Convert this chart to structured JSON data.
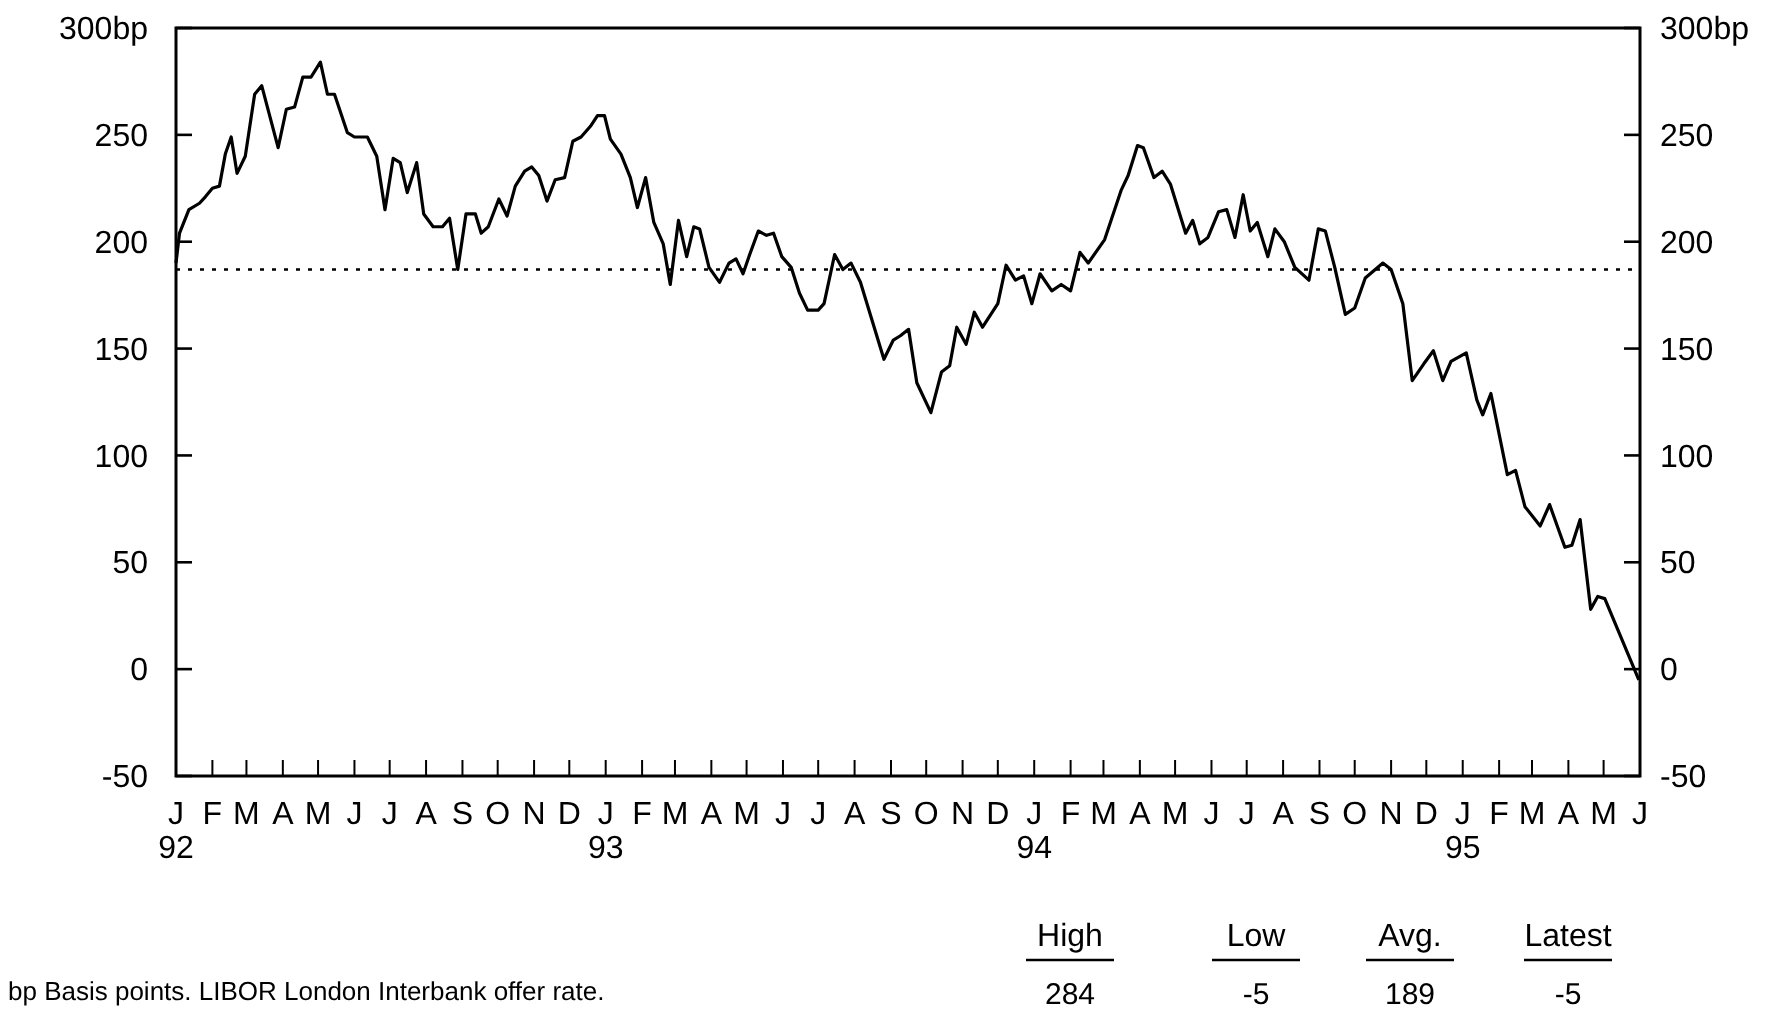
{
  "chart_data": {
    "type": "line",
    "series": [
      {
        "color": "#000000",
        "x": [
          "1992-01-01",
          "1992-01-04",
          "1992-01-12",
          "1992-01-21",
          "1992-01-26",
          "1992-02-01",
          "1992-02-07",
          "1992-02-12",
          "1992-02-17",
          "1992-02-22",
          "1992-02-29",
          "1992-03-08",
          "1992-03-14",
          "1992-03-28",
          "1992-04-04",
          "1992-04-11",
          "1992-04-18",
          "1992-04-25",
          "1992-05-03",
          "1992-05-09",
          "1992-05-15",
          "1992-05-26",
          "1992-06-01",
          "1992-06-12",
          "1992-06-20",
          "1992-06-27",
          "1992-07-04",
          "1992-07-10",
          "1992-07-16",
          "1992-07-24",
          "1992-07-30",
          "1992-08-07",
          "1992-08-15",
          "1992-08-21",
          "1992-08-28",
          "1992-09-04",
          "1992-09-12",
          "1992-09-17",
          "1992-09-23",
          "1992-10-02",
          "1992-10-09",
          "1992-10-16",
          "1992-10-24",
          "1992-10-30",
          "1992-11-05",
          "1992-11-12",
          "1992-11-19",
          "1992-11-27",
          "1992-12-04",
          "1992-12-11",
          "1992-12-19",
          "1992-12-25",
          "1992-12-31",
          "1993-01-05",
          "1993-01-14",
          "1993-01-22",
          "1993-01-28",
          "1993-02-04",
          "1993-02-11",
          "1993-02-19",
          "1993-02-25",
          "1993-03-04",
          "1993-03-11",
          "1993-03-17",
          "1993-03-22",
          "1993-03-30",
          "1993-04-08",
          "1993-04-16",
          "1993-04-22",
          "1993-04-28",
          "1993-05-03",
          "1993-05-11",
          "1993-05-18",
          "1993-05-24",
          "1993-05-31",
          "1993-06-08",
          "1993-06-15",
          "1993-06-22",
          "1993-07-01",
          "1993-07-06",
          "1993-07-15",
          "1993-07-22",
          "1993-07-29",
          "1993-08-06",
          "1993-08-16",
          "1993-08-26",
          "1993-09-03",
          "1993-09-09",
          "1993-09-16",
          "1993-09-23",
          "1993-10-05",
          "1993-10-14",
          "1993-10-21",
          "1993-10-27",
          "1993-11-04",
          "1993-11-11",
          "1993-11-18",
          "1993-12-01",
          "1993-12-08",
          "1993-12-16",
          "1993-12-23",
          "1993-12-30",
          "1994-01-06",
          "1994-01-16",
          "1994-01-24",
          "1994-02-01",
          "1994-02-09",
          "1994-02-16",
          "1994-03-02",
          "1994-03-16",
          "1994-03-22",
          "1994-03-30",
          "1994-04-04",
          "1994-04-13",
          "1994-04-20",
          "1994-04-27",
          "1994-05-10",
          "1994-05-16",
          "1994-05-22",
          "1994-05-29",
          "1994-06-07",
          "1994-06-14",
          "1994-06-21",
          "1994-06-28",
          "1994-07-04",
          "1994-07-10",
          "1994-07-19",
          "1994-07-25",
          "1994-08-02",
          "1994-08-11",
          "1994-08-23",
          "1994-08-31",
          "1994-09-06",
          "1994-09-14",
          "1994-09-23",
          "1994-10-01",
          "1994-10-10",
          "1994-10-25",
          "1994-11-01",
          "1994-11-11",
          "1994-11-19",
          "1994-11-29",
          "1994-12-07",
          "1994-12-15",
          "1994-12-22",
          "1995-01-04",
          "1995-01-13",
          "1995-01-18",
          "1995-01-25",
          "1995-02-08",
          "1995-02-15",
          "1995-02-23",
          "1995-03-08",
          "1995-03-16",
          "1995-03-29",
          "1995-04-04",
          "1995-04-11",
          "1995-04-20",
          "1995-04-26",
          "1995-05-02",
          "1995-05-31"
        ],
        "values": [
          190,
          204,
          215,
          218,
          221,
          225,
          226,
          241,
          249,
          232,
          240,
          269,
          273,
          244,
          262,
          263,
          277,
          277,
          284,
          269,
          269,
          251,
          249,
          249,
          240,
          215,
          239,
          237,
          223,
          237,
          213,
          207,
          207,
          211,
          187,
          213,
          213,
          204,
          207,
          220,
          212,
          226,
          233,
          235,
          231,
          219,
          229,
          230,
          247,
          249,
          254,
          259,
          259,
          248,
          241,
          230,
          216,
          230,
          209,
          199,
          180,
          210,
          193,
          207,
          206,
          188,
          181,
          190,
          192,
          185,
          193,
          205,
          203,
          204,
          193,
          188,
          176,
          168,
          168,
          171,
          194,
          187,
          190,
          181,
          163,
          145,
          154,
          156,
          159,
          134,
          120,
          139,
          142,
          160,
          152,
          167,
          160,
          171,
          189,
          182,
          184,
          171,
          185,
          177,
          180,
          177,
          195,
          190,
          201,
          224,
          231,
          245,
          244,
          230,
          233,
          227,
          204,
          210,
          199,
          202,
          214,
          215,
          202,
          222,
          205,
          209,
          193,
          206,
          200,
          188,
          182,
          206,
          205,
          188,
          166,
          169,
          183,
          190,
          187,
          171,
          135,
          143,
          149,
          135,
          144,
          148,
          126,
          119,
          129,
          91,
          93,
          76,
          67,
          77,
          57,
          58,
          70,
          28,
          34,
          33,
          -5
        ]
      }
    ],
    "xlim": [
      "1992-01-01",
      "1995-06-01"
    ],
    "xticks": [
      {
        "value": "1992-01-01",
        "label": "J\n92"
      },
      {
        "value": "1992-02-01",
        "label": "F"
      },
      {
        "value": "1992-03-01",
        "label": "M"
      },
      {
        "value": "1992-04-01",
        "label": "A"
      },
      {
        "value": "1992-05-01",
        "label": "M"
      },
      {
        "value": "1992-06-01",
        "label": "J"
      },
      {
        "value": "1992-07-01",
        "label": "J"
      },
      {
        "value": "1992-08-01",
        "label": "A"
      },
      {
        "value": "1992-09-01",
        "label": "S"
      },
      {
        "value": "1992-10-01",
        "label": "O"
      },
      {
        "value": "1992-11-01",
        "label": "N"
      },
      {
        "value": "1992-12-01",
        "label": "D"
      },
      {
        "value": "1993-01-01",
        "label": "J\n93"
      },
      {
        "value": "1993-02-01",
        "label": "F"
      },
      {
        "value": "1993-03-01",
        "label": "M"
      },
      {
        "value": "1993-04-01",
        "label": "A"
      },
      {
        "value": "1993-05-01",
        "label": "M"
      },
      {
        "value": "1993-06-01",
        "label": "J"
      },
      {
        "value": "1993-07-01",
        "label": "J"
      },
      {
        "value": "1993-08-01",
        "label": "A"
      },
      {
        "value": "1993-09-01",
        "label": "S"
      },
      {
        "value": "1993-10-01",
        "label": "O"
      },
      {
        "value": "1993-11-01",
        "label": "N"
      },
      {
        "value": "1993-12-01",
        "label": "D"
      },
      {
        "value": "1994-01-01",
        "label": "J\n94"
      },
      {
        "value": "1994-02-01",
        "label": "F"
      },
      {
        "value": "1994-03-01",
        "label": "M"
      },
      {
        "value": "1994-04-01",
        "label": "A"
      },
      {
        "value": "1994-05-01",
        "label": "M"
      },
      {
        "value": "1994-06-01",
        "label": "J"
      },
      {
        "value": "1994-07-01",
        "label": "J"
      },
      {
        "value": "1994-08-01",
        "label": "A"
      },
      {
        "value": "1994-09-01",
        "label": "S"
      },
      {
        "value": "1994-10-01",
        "label": "O"
      },
      {
        "value": "1994-11-01",
        "label": "N"
      },
      {
        "value": "1994-12-01",
        "label": "D"
      },
      {
        "value": "1995-01-01",
        "label": "J\n95"
      },
      {
        "value": "1995-02-01",
        "label": "F"
      },
      {
        "value": "1995-03-01",
        "label": "M"
      },
      {
        "value": "1995-04-01",
        "label": "A"
      },
      {
        "value": "1995-05-01",
        "label": "M"
      },
      {
        "value": "1995-06-01",
        "label": "J"
      }
    ],
    "ylim": [
      -50,
      300
    ],
    "yticks": [
      -50,
      0,
      50,
      100,
      150,
      200,
      250,
      {
        "value": 300,
        "label": "300bp"
      }
    ],
    "y2lim": [
      -50,
      300
    ],
    "y2ticks": [
      -50,
      0,
      50,
      100,
      150,
      200,
      250,
      {
        "value": 300,
        "label": "300bp"
      }
    ],
    "ref_lines": [
      {
        "axis": "y",
        "value": 187,
        "line_style": "dotted",
        "color": "#000000"
      }
    ],
    "grid": false,
    "marker": "none",
    "line_style": "solid",
    "annotations": [
      "bp Basis points. LIBOR London Interbank offer rate.",
      "High",
      "Low",
      "Avg.",
      "Latest",
      "284",
      "-5",
      "189",
      "-5"
    ]
  }
}
